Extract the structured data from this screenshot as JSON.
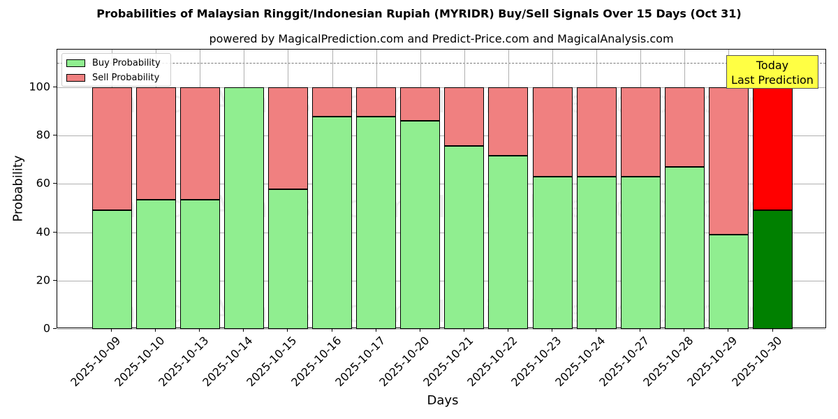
{
  "chart_data": {
    "type": "bar",
    "stacked": true,
    "title": "Probabilities of Malaysian Ringgit/Indonesian Rupiah (MYRIDR) Buy/Sell Signals Over 15 Days (Oct 31)",
    "subtitle": "powered by MagicalPrediction.com and Predict-Price.com and MagicalAnalysis.com",
    "xlabel": "Days",
    "ylabel": "Probability",
    "ylim": [
      0,
      115
    ],
    "yticks": [
      0,
      20,
      40,
      60,
      80,
      100
    ],
    "reference_line": 110,
    "grid": true,
    "legend_position": "upper left",
    "categories": [
      "2025-10-09",
      "2025-10-10",
      "2025-10-13",
      "2025-10-14",
      "2025-10-15",
      "2025-10-16",
      "2025-10-17",
      "2025-10-20",
      "2025-10-21",
      "2025-10-22",
      "2025-10-23",
      "2025-10-24",
      "2025-10-27",
      "2025-10-28",
      "2025-10-29",
      "2025-10-30"
    ],
    "series": [
      {
        "name": "Buy Probability",
        "color": "#90ee90",
        "values": [
          49,
          53.5,
          53.5,
          100,
          57.8,
          87.9,
          87.9,
          86.1,
          75.7,
          71.7,
          63,
          63,
          63,
          67,
          39,
          49
        ]
      },
      {
        "name": "Sell Probability",
        "color": "#f08080",
        "values": [
          51,
          46.5,
          46.5,
          0,
          42.2,
          12.1,
          12.1,
          13.9,
          24.3,
          28.3,
          37,
          37,
          37,
          33,
          61,
          51
        ]
      }
    ],
    "highlight": {
      "index": 15,
      "buy_color": "#008000",
      "sell_color": "#ff0000"
    },
    "annotation": {
      "line1": "Today",
      "line2": "Last Prediction",
      "background": "#ffff44"
    }
  },
  "watermarks": [
    "MagicalAnalysis.com",
    "MagicalPrediction.com"
  ]
}
